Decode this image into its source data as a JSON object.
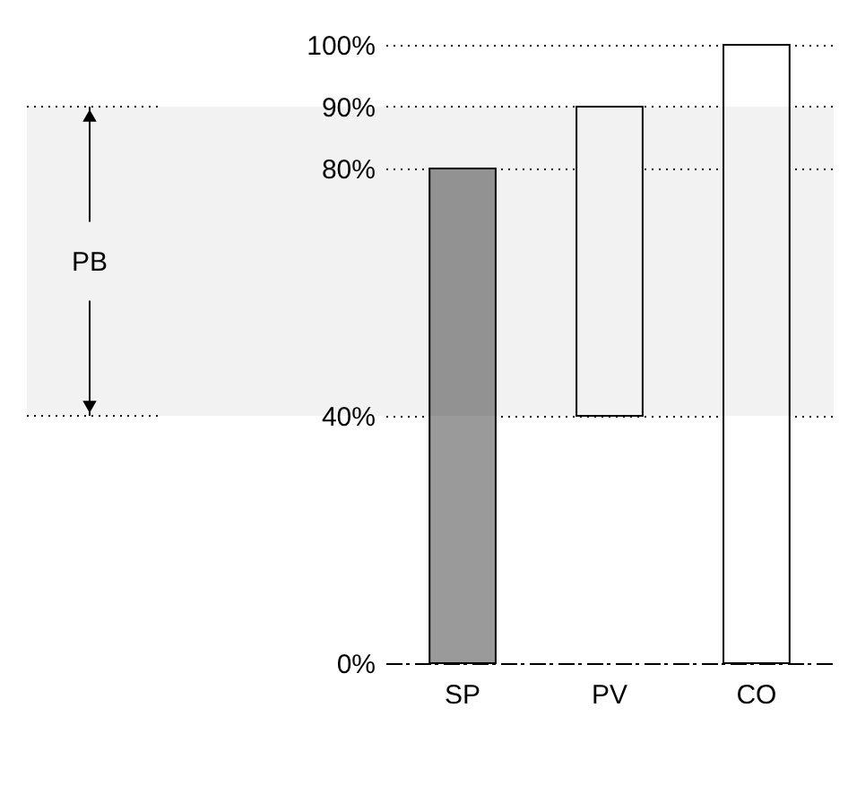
{
  "chart_data": {
    "type": "bar",
    "categories": [
      "SP",
      "PV",
      "CO"
    ],
    "values": [
      80,
      50,
      100
    ],
    "base": [
      0,
      40,
      0
    ],
    "colors": [
      "#9a9a9a",
      "#ffffff",
      "#ffffff"
    ],
    "ylim": [
      0,
      100
    ],
    "yticks": [
      {
        "value": 0,
        "label": "0%"
      },
      {
        "value": 40,
        "label": "40%"
      },
      {
        "value": 80,
        "label": "80%"
      },
      {
        "value": 90,
        "label": "90%"
      },
      {
        "value": 100,
        "label": "100%"
      }
    ],
    "grid": "y",
    "bands": [
      {
        "axis": "y",
        "from": 40,
        "to": 90,
        "label": "PB"
      }
    ]
  }
}
